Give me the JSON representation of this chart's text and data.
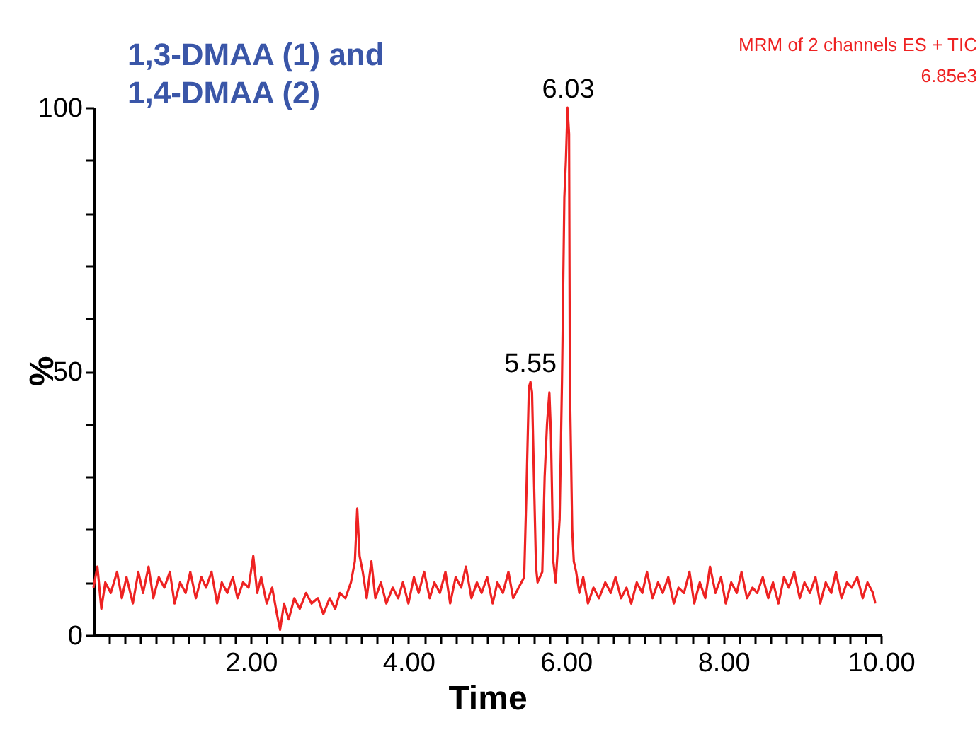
{
  "chart_data": {
    "type": "line",
    "title": "1,3-DMAA (1) and 1,4-DMAA (2)",
    "xlabel": "Time",
    "ylabel": "%",
    "x": [
      0.0,
      0.05,
      0.1,
      0.15,
      0.22,
      0.3,
      0.36,
      0.42,
      0.5,
      0.57,
      0.63,
      0.7,
      0.76,
      0.83,
      0.9,
      0.97,
      1.03,
      1.1,
      1.17,
      1.23,
      1.3,
      1.37,
      1.43,
      1.5,
      1.57,
      1.63,
      1.7,
      1.77,
      1.83,
      1.9,
      1.97,
      2.03,
      2.08,
      2.13,
      2.2,
      2.27,
      2.33,
      2.37,
      2.42,
      2.48,
      2.55,
      2.62,
      2.7,
      2.77,
      2.85,
      2.92,
      3.0,
      3.07,
      3.13,
      3.2,
      3.27,
      3.32,
      3.35,
      3.38,
      3.42,
      3.47,
      3.53,
      3.58,
      3.65,
      3.72,
      3.8,
      3.87,
      3.93,
      4.0,
      4.07,
      4.13,
      4.2,
      4.27,
      4.33,
      4.4,
      4.47,
      4.53,
      4.6,
      4.67,
      4.73,
      4.8,
      4.87,
      4.93,
      5.0,
      5.07,
      5.13,
      5.2,
      5.27,
      5.33,
      5.4,
      5.47,
      5.5,
      5.53,
      5.55,
      5.57,
      5.6,
      5.62,
      5.64,
      5.7,
      5.73,
      5.76,
      5.79,
      5.81,
      5.84,
      5.87,
      5.92,
      5.95,
      5.98,
      6.0,
      6.02,
      6.04,
      6.05,
      6.08,
      6.1,
      6.13,
      6.17,
      6.22,
      6.28,
      6.35,
      6.42,
      6.5,
      6.57,
      6.63,
      6.7,
      6.77,
      6.83,
      6.9,
      6.97,
      7.03,
      7.1,
      7.17,
      7.23,
      7.3,
      7.37,
      7.43,
      7.5,
      7.57,
      7.63,
      7.7,
      7.77,
      7.83,
      7.9,
      7.97,
      8.03,
      8.1,
      8.17,
      8.23,
      8.3,
      8.37,
      8.43,
      8.5,
      8.57,
      8.63,
      8.7,
      8.77,
      8.83,
      8.9,
      8.97,
      9.03,
      9.1,
      9.17,
      9.23,
      9.3,
      9.37,
      9.43,
      9.5,
      9.57,
      9.63,
      9.7,
      9.77,
      9.83,
      9.9,
      9.93
    ],
    "series": [
      {
        "color": "#ee2222",
        "values": [
          9,
          13,
          5,
          10,
          8,
          12,
          7,
          11,
          6,
          12,
          8,
          13,
          7,
          11,
          9,
          12,
          6,
          10,
          8,
          12,
          7,
          11,
          9,
          12,
          6,
          10,
          8,
          11,
          7,
          10,
          9,
          15,
          8,
          11,
          6,
          9,
          4,
          1,
          6,
          3,
          7,
          5,
          8,
          6,
          7,
          4,
          7,
          5,
          8,
          7,
          10,
          14,
          24,
          15,
          12,
          7,
          14,
          7,
          10,
          6,
          9,
          7,
          10,
          6,
          11,
          8,
          12,
          7,
          10,
          8,
          12,
          6,
          11,
          9,
          13,
          7,
          10,
          8,
          11,
          6,
          10,
          8,
          12,
          7,
          9,
          11,
          28,
          47,
          48,
          46,
          26,
          13,
          10,
          12,
          30,
          40,
          46,
          38,
          14,
          10,
          22,
          48,
          83,
          90,
          100,
          95,
          48,
          20,
          14,
          12,
          8,
          11,
          6,
          9,
          7,
          10,
          8,
          11,
          7,
          9,
          6,
          10,
          8,
          12,
          7,
          10,
          8,
          11,
          6,
          9,
          8,
          12,
          6,
          10,
          7,
          13,
          8,
          11,
          6,
          10,
          8,
          12,
          7,
          9,
          8,
          11,
          7,
          10,
          6,
          11,
          9,
          12,
          7,
          10,
          8,
          11,
          6,
          10,
          8,
          12,
          7,
          10,
          9,
          11,
          7,
          10,
          8,
          6
        ]
      }
    ],
    "xlim": [
      0,
      10
    ],
    "ylim": [
      0,
      100
    ],
    "xticks": [
      {
        "value": 0.2,
        "label": null
      },
      {
        "value": 0.4,
        "label": null
      },
      {
        "value": 0.6,
        "label": null
      },
      {
        "value": 0.8,
        "label": null
      },
      {
        "value": 1,
        "label": null
      },
      {
        "value": 1.2,
        "label": null
      },
      {
        "value": 1.4,
        "label": null
      },
      {
        "value": 1.6,
        "label": null
      },
      {
        "value": 1.8,
        "label": null
      },
      {
        "value": 2,
        "label": "2.00"
      },
      {
        "value": 2.2,
        "label": null
      },
      {
        "value": 2.4,
        "label": null
      },
      {
        "value": 2.6,
        "label": null
      },
      {
        "value": 2.8,
        "label": null
      },
      {
        "value": 3,
        "label": null
      },
      {
        "value": 3.2,
        "label": null
      },
      {
        "value": 3.4,
        "label": null
      },
      {
        "value": 3.6,
        "label": null
      },
      {
        "value": 3.8,
        "label": null
      },
      {
        "value": 4,
        "label": "4.00"
      },
      {
        "value": 4.2,
        "label": null
      },
      {
        "value": 4.4,
        "label": null
      },
      {
        "value": 4.6,
        "label": null
      },
      {
        "value": 4.8,
        "label": null
      },
      {
        "value": 5,
        "label": null
      },
      {
        "value": 5.2,
        "label": null
      },
      {
        "value": 5.4,
        "label": null
      },
      {
        "value": 5.6,
        "label": null
      },
      {
        "value": 5.8,
        "label": null
      },
      {
        "value": 6,
        "label": "6.00"
      },
      {
        "value": 6.2,
        "label": null
      },
      {
        "value": 6.4,
        "label": null
      },
      {
        "value": 6.6,
        "label": null
      },
      {
        "value": 6.8,
        "label": null
      },
      {
        "value": 7,
        "label": null
      },
      {
        "value": 7.2,
        "label": null
      },
      {
        "value": 7.4,
        "label": null
      },
      {
        "value": 7.6,
        "label": null
      },
      {
        "value": 7.8,
        "label": null
      },
      {
        "value": 8,
        "label": "8.00"
      },
      {
        "value": 8.2,
        "label": null
      },
      {
        "value": 8.4,
        "label": null
      },
      {
        "value": 8.6,
        "label": null
      },
      {
        "value": 8.8,
        "label": null
      },
      {
        "value": 9,
        "label": null
      },
      {
        "value": 9.2,
        "label": null
      },
      {
        "value": 9.4,
        "label": null
      },
      {
        "value": 9.6,
        "label": null
      },
      {
        "value": 9.8,
        "label": null
      },
      {
        "value": 10,
        "label": "10.00"
      }
    ],
    "yticks": [
      0,
      {
        "value": 10,
        "label": null
      },
      {
        "value": 20,
        "label": null
      },
      {
        "value": 30,
        "label": null
      },
      {
        "value": 40,
        "label": null
      },
      50,
      {
        "value": 60,
        "label": null
      },
      {
        "value": 70,
        "label": null
      },
      {
        "value": 80,
        "label": null
      },
      {
        "value": 90,
        "label": null
      },
      100
    ],
    "grid": false,
    "marker": "none",
    "line_style": "solid",
    "annotations": [
      {
        "text": "5.55",
        "x": 5.55,
        "y": 48
      },
      {
        "text": "6.03",
        "x": 6.03,
        "y": 100
      },
      "MRM of 2 channels ES + TIC",
      "6.85e3"
    ]
  }
}
